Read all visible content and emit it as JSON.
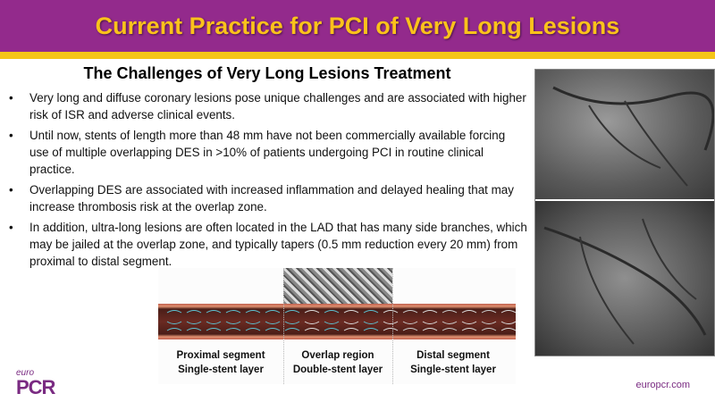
{
  "title": "Current Practice for PCI of Very Long Lesions",
  "subtitle": "The Challenges of Very Long Lesions Treatment",
  "bullets": [
    "Very long and diffuse coronary lesions pose unique challenges and are associated with higher risk of ISR and adverse clinical events.",
    "Until now, stents of length more than 48 mm have not been commercially available forcing use of multiple overlapping DES in >10% of patients undergoing PCI in routine clinical practice.",
    "Overlapping DES are associated with increased inflammation and delayed healing  that may increase thrombosis risk at the overlap zone.",
    "In addition, ultra-long lesions are often located in the LAD that has many side branches, which may be jailed at the overlap zone, and typically tapers (0.5 mm reduction every 20 mm) from proximal to distal segment."
  ],
  "bullet_symbol": "•",
  "figure": {
    "labels": [
      {
        "line1": "Proximal segment",
        "line2": "Single-stent layer"
      },
      {
        "line1": "Overlap region",
        "line2": "Double-stent layer"
      },
      {
        "line1": "Distal segment",
        "line2": "Single-stent layer"
      }
    ]
  },
  "footer": {
    "logo_euro": "euro",
    "logo_pcr": "PCR",
    "url": "europcr.com"
  },
  "colors": {
    "header": "#932a8c",
    "title": "#fbc21b",
    "stripe": "#f5c518",
    "brand": "#7a2b82"
  }
}
